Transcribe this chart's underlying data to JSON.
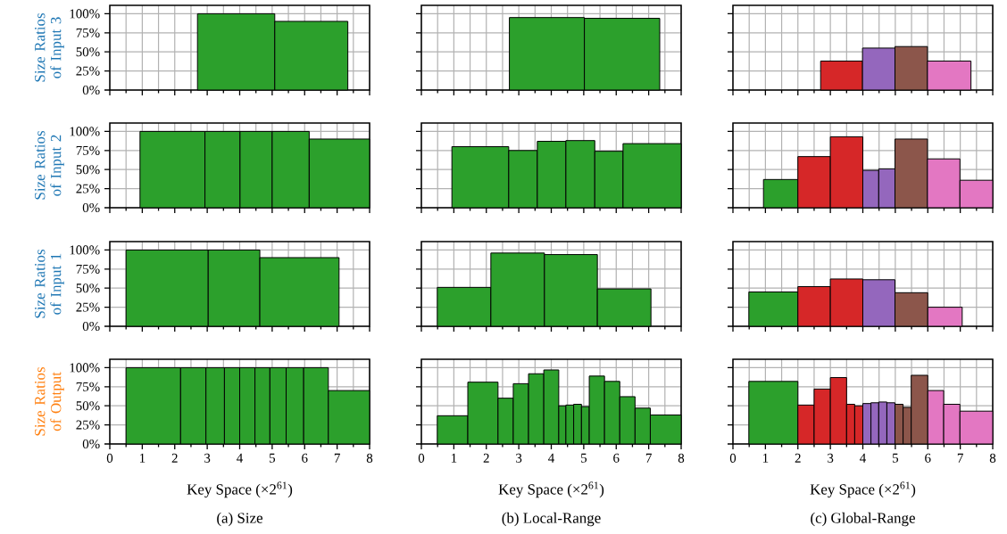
{
  "chart_data": [
    {
      "type": "histogram",
      "ylabel": "Size Ratios of Input 3",
      "bins": [
        2.7,
        5.08,
        7.33
      ],
      "values": [
        100,
        90
      ],
      "color": "#2ca02c",
      "xlim": [
        0,
        8
      ],
      "xticks": [
        0,
        1,
        2,
        3,
        4,
        5,
        6,
        7,
        8
      ],
      "ylim": [
        0,
        111
      ],
      "yticks": [
        {
          "value": 0,
          "label": "0%"
        },
        {
          "value": 25,
          "label": "25%"
        },
        {
          "value": 50,
          "label": "50%"
        },
        {
          "value": 75,
          "label": "75%"
        },
        {
          "value": 100,
          "label": "100%"
        }
      ],
      "grid": true,
      "tick_labels": "y"
    },
    {
      "type": "histogram",
      "bins": [
        2.71,
        5.02,
        7.34
      ],
      "values": [
        95,
        94
      ],
      "color": "#2ca02c",
      "xlim": [
        0,
        8
      ],
      "xticks": [
        0,
        1,
        2,
        3,
        4,
        5,
        6,
        7,
        8
      ],
      "ylim": [
        0,
        111
      ],
      "yticks": [
        {
          "value": 0,
          "label": null
        },
        {
          "value": 25,
          "label": null
        },
        {
          "value": 50,
          "label": null
        },
        {
          "value": 75,
          "label": null
        },
        {
          "value": 100,
          "label": null
        }
      ],
      "grid": true,
      "tick_labels": false
    },
    {
      "type": "histogram",
      "bins": [
        2.7,
        3.99,
        4.99,
        5.99,
        7.33
      ],
      "values": [
        38,
        55,
        57,
        38
      ],
      "colors": [
        "#d62728",
        "#9467bd",
        "#8c564b",
        "#e377c2"
      ],
      "xlim": [
        0,
        8
      ],
      "xticks": [
        0,
        1,
        2,
        3,
        4,
        5,
        6,
        7,
        8
      ],
      "ylim": [
        0,
        111
      ],
      "yticks": [
        {
          "value": 0,
          "label": null
        },
        {
          "value": 25,
          "label": null
        },
        {
          "value": 50,
          "label": null
        },
        {
          "value": 75,
          "label": null
        },
        {
          "value": 100,
          "label": null
        }
      ],
      "grid": true,
      "tick_labels": false
    },
    {
      "type": "histogram",
      "ylabel": "Size Ratios of Input 2",
      "bins": [
        0.93,
        2.93,
        4.01,
        5.0,
        6.14,
        8.0
      ],
      "values": [
        100,
        100,
        100,
        100,
        90
      ],
      "color": "#2ca02c",
      "xlim": [
        0,
        8
      ],
      "xticks": [
        0,
        1,
        2,
        3,
        4,
        5,
        6,
        7,
        8
      ],
      "ylim": [
        0,
        111
      ],
      "yticks": [
        {
          "value": 0,
          "label": "0%"
        },
        {
          "value": 25,
          "label": "25%"
        },
        {
          "value": 50,
          "label": "50%"
        },
        {
          "value": 75,
          "label": "75%"
        },
        {
          "value": 100,
          "label": "100%"
        }
      ],
      "grid": true,
      "tick_labels": "y"
    },
    {
      "type": "histogram",
      "bins": [
        0.94,
        2.69,
        3.57,
        4.45,
        5.34,
        6.21,
        8.0
      ],
      "values": [
        80,
        75,
        87,
        88,
        74,
        84
      ],
      "color": "#2ca02c",
      "xlim": [
        0,
        8
      ],
      "xticks": [
        0,
        1,
        2,
        3,
        4,
        5,
        6,
        7,
        8
      ],
      "ylim": [
        0,
        111
      ],
      "yticks": [
        {
          "value": 0,
          "label": null
        },
        {
          "value": 25,
          "label": null
        },
        {
          "value": 50,
          "label": null
        },
        {
          "value": 75,
          "label": null
        },
        {
          "value": 100,
          "label": null
        }
      ],
      "grid": true,
      "tick_labels": false
    },
    {
      "type": "histogram",
      "bins": [
        0.94,
        2.0,
        3.0,
        4.0,
        4.49,
        4.99,
        5.99,
        6.99,
        8.0
      ],
      "values": [
        37,
        67,
        93,
        49,
        51,
        90,
        64,
        36
      ],
      "colors": [
        "#2ca02c",
        "#d62728",
        "#d62728",
        "#9467bd",
        "#9467bd",
        "#8c564b",
        "#e377c2",
        "#e377c2"
      ],
      "xlim": [
        0,
        8
      ],
      "xticks": [
        0,
        1,
        2,
        3,
        4,
        5,
        6,
        7,
        8
      ],
      "ylim": [
        0,
        111
      ],
      "yticks": [
        {
          "value": 0,
          "label": null
        },
        {
          "value": 25,
          "label": null
        },
        {
          "value": 50,
          "label": null
        },
        {
          "value": 75,
          "label": null
        },
        {
          "value": 100,
          "label": null
        }
      ],
      "grid": true,
      "tick_labels": false
    },
    {
      "type": "histogram",
      "ylabel": "Size Ratios of Input 1",
      "bins": [
        0.5,
        3.03,
        4.62,
        7.06
      ],
      "values": [
        100,
        100,
        90
      ],
      "color": "#2ca02c",
      "xlim": [
        0,
        8
      ],
      "xticks": [
        0,
        1,
        2,
        3,
        4,
        5,
        6,
        7,
        8
      ],
      "ylim": [
        0,
        111
      ],
      "yticks": [
        {
          "value": 0,
          "label": "0%"
        },
        {
          "value": 25,
          "label": "25%"
        },
        {
          "value": 50,
          "label": "50%"
        },
        {
          "value": 75,
          "label": "75%"
        },
        {
          "value": 100,
          "label": "100%"
        }
      ],
      "grid": true,
      "tick_labels": "y"
    },
    {
      "type": "histogram",
      "bins": [
        0.49,
        2.14,
        3.79,
        5.42,
        7.07
      ],
      "values": [
        51,
        96,
        94,
        49
      ],
      "color": "#2ca02c",
      "xlim": [
        0,
        8
      ],
      "xticks": [
        0,
        1,
        2,
        3,
        4,
        5,
        6,
        7,
        8
      ],
      "ylim": [
        0,
        111
      ],
      "yticks": [
        {
          "value": 0,
          "label": null
        },
        {
          "value": 25,
          "label": null
        },
        {
          "value": 50,
          "label": null
        },
        {
          "value": 75,
          "label": null
        },
        {
          "value": 100,
          "label": null
        }
      ],
      "grid": true,
      "tick_labels": false
    },
    {
      "type": "histogram",
      "bins": [
        0.49,
        2.0,
        3.0,
        4.0,
        4.99,
        6.0,
        7.06
      ],
      "values": [
        45,
        52,
        62,
        61,
        44,
        25
      ],
      "colors": [
        "#2ca02c",
        "#d62728",
        "#d62728",
        "#9467bd",
        "#8c564b",
        "#e377c2"
      ],
      "xlim": [
        0,
        8
      ],
      "xticks": [
        0,
        1,
        2,
        3,
        4,
        5,
        6,
        7,
        8
      ],
      "ylim": [
        0,
        111
      ],
      "yticks": [
        {
          "value": 0,
          "label": null
        },
        {
          "value": 25,
          "label": null
        },
        {
          "value": 50,
          "label": null
        },
        {
          "value": 75,
          "label": null
        },
        {
          "value": 100,
          "label": null
        }
      ],
      "grid": true,
      "tick_labels": false
    },
    {
      "type": "histogram",
      "ylabel": "Size Ratios of Output",
      "xlabel": "Key Space (×2$^{61}$)",
      "annotations": [
        "(a) Size"
      ],
      "bins": [
        0.5,
        2.18,
        2.96,
        3.53,
        4.0,
        4.47,
        4.93,
        5.43,
        5.97,
        6.73,
        8.0
      ],
      "values": [
        100,
        100,
        100,
        100,
        100,
        100,
        100,
        100,
        100,
        70
      ],
      "color": "#2ca02c",
      "xlim": [
        0,
        8
      ],
      "xticks": [
        0,
        1,
        2,
        3,
        4,
        5,
        6,
        7,
        8
      ],
      "ylim": [
        0,
        111
      ],
      "yticks": [
        {
          "value": 0,
          "label": "0%"
        },
        {
          "value": 25,
          "label": "25%"
        },
        {
          "value": 50,
          "label": "50%"
        },
        {
          "value": 75,
          "label": "75%"
        },
        {
          "value": 100,
          "label": "100%"
        }
      ],
      "grid": true
    },
    {
      "type": "histogram",
      "xlabel": "Key Space (×2$^{61}$)",
      "annotations": [
        "(b) Local-Range"
      ],
      "bins": [
        0.49,
        1.43,
        2.36,
        2.83,
        3.3,
        3.77,
        4.23,
        4.45,
        4.69,
        4.93,
        5.17,
        5.64,
        6.11,
        6.58,
        7.05,
        8.0
      ],
      "values": [
        37,
        81,
        60,
        79,
        92,
        97,
        50,
        51,
        52,
        49,
        89,
        82,
        62,
        47,
        38
      ],
      "color": "#2ca02c",
      "xlim": [
        0,
        8
      ],
      "xticks": [
        0,
        1,
        2,
        3,
        4,
        5,
        6,
        7,
        8
      ],
      "ylim": [
        0,
        111
      ],
      "yticks": [
        {
          "value": 0,
          "label": null
        },
        {
          "value": 25,
          "label": null
        },
        {
          "value": 50,
          "label": null
        },
        {
          "value": 75,
          "label": null
        },
        {
          "value": 100,
          "label": null
        }
      ],
      "grid": true,
      "tick_labels": "x"
    },
    {
      "type": "histogram",
      "xlabel": "Key Space (×2$^{61}$)",
      "annotations": [
        "(c) Global-Range"
      ],
      "bins": [
        0.49,
        2.0,
        2.5,
        3.0,
        3.5,
        3.75,
        4.0,
        4.25,
        4.49,
        4.74,
        4.99,
        5.24,
        5.49,
        6.0,
        6.49,
        6.99,
        8.0
      ],
      "values": [
        82,
        51,
        72,
        87,
        52,
        50,
        53,
        54,
        55,
        54,
        52,
        48,
        90,
        70,
        52,
        43
      ],
      "colors": [
        "#2ca02c",
        "#d62728",
        "#d62728",
        "#d62728",
        "#d62728",
        "#d62728",
        "#9467bd",
        "#9467bd",
        "#9467bd",
        "#9467bd",
        "#8c564b",
        "#8c564b",
        "#8c564b",
        "#e377c2",
        "#e377c2",
        "#e377c2"
      ],
      "xlim": [
        0,
        8
      ],
      "xticks": [
        0,
        1,
        2,
        3,
        4,
        5,
        6,
        7,
        8
      ],
      "ylim": [
        0,
        111
      ],
      "yticks": [
        {
          "value": 0,
          "label": null
        },
        {
          "value": 25,
          "label": null
        },
        {
          "value": 50,
          "label": null
        },
        {
          "value": 75,
          "label": null
        },
        {
          "value": 100,
          "label": null
        }
      ],
      "grid": true,
      "tick_labels": "x"
    }
  ]
}
